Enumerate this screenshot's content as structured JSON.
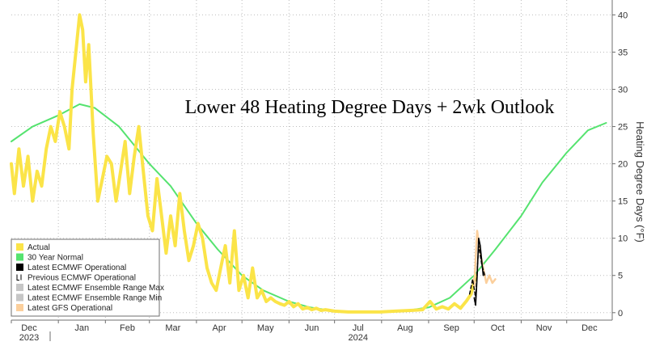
{
  "chart_data": {
    "type": "line",
    "title": "Lower 48 Heating Degree Days + 2wk Outlook",
    "ylabel": "Heating Degree Days (°F)",
    "xlabel": "",
    "ylim": [
      -1,
      42
    ],
    "yticks": [
      0,
      5,
      10,
      15,
      20,
      25,
      30,
      35,
      40
    ],
    "xlim": [
      "2023-12-01",
      "2024-12-31"
    ],
    "x_ticks": [
      {
        "date": "2023-12-01",
        "label": "Dec",
        "sublabel": "2023"
      },
      {
        "date": "2024-01-01",
        "label": "Jan"
      },
      {
        "date": "2024-02-01",
        "label": "Feb"
      },
      {
        "date": "2024-03-01",
        "label": "Mar"
      },
      {
        "date": "2024-04-01",
        "label": "Apr"
      },
      {
        "date": "2024-05-01",
        "label": "May"
      },
      {
        "date": "2024-06-01",
        "label": "Jun"
      },
      {
        "date": "2024-07-01",
        "label": "Jul",
        "sublabel": "2024"
      },
      {
        "date": "2024-08-01",
        "label": "Aug"
      },
      {
        "date": "2024-09-01",
        "label": "Sep"
      },
      {
        "date": "2024-10-01",
        "label": "Oct"
      },
      {
        "date": "2024-11-01",
        "label": "Nov"
      },
      {
        "date": "2024-12-01",
        "label": "Dec"
      }
    ],
    "grid": true,
    "legend_position": "bottom-left",
    "series": [
      {
        "name": "Actual",
        "color": "#fbe448",
        "style": "solid",
        "points": [
          [
            "2023-12-01",
            20
          ],
          [
            "2023-12-03",
            16
          ],
          [
            "2023-12-06",
            22
          ],
          [
            "2023-12-09",
            17
          ],
          [
            "2023-12-12",
            21
          ],
          [
            "2023-12-15",
            15
          ],
          [
            "2023-12-18",
            19
          ],
          [
            "2023-12-21",
            17
          ],
          [
            "2023-12-24",
            22
          ],
          [
            "2023-12-27",
            25
          ],
          [
            "2023-12-30",
            23
          ],
          [
            "2024-01-02",
            27
          ],
          [
            "2024-01-05",
            25
          ],
          [
            "2024-01-08",
            22
          ],
          [
            "2024-01-10",
            30
          ],
          [
            "2024-01-13",
            36
          ],
          [
            "2024-01-15",
            40
          ],
          [
            "2024-01-17",
            38
          ],
          [
            "2024-01-19",
            31
          ],
          [
            "2024-01-21",
            36
          ],
          [
            "2024-01-24",
            24
          ],
          [
            "2024-01-27",
            15
          ],
          [
            "2024-01-30",
            18
          ],
          [
            "2024-02-02",
            21
          ],
          [
            "2024-02-05",
            20
          ],
          [
            "2024-02-08",
            15
          ],
          [
            "2024-02-11",
            19
          ],
          [
            "2024-02-14",
            23
          ],
          [
            "2024-02-17",
            16
          ],
          [
            "2024-02-20",
            21
          ],
          [
            "2024-02-23",
            25
          ],
          [
            "2024-02-26",
            19
          ],
          [
            "2024-02-29",
            13
          ],
          [
            "2024-03-03",
            11
          ],
          [
            "2024-03-06",
            18
          ],
          [
            "2024-03-09",
            13
          ],
          [
            "2024-03-12",
            8
          ],
          [
            "2024-03-15",
            13
          ],
          [
            "2024-03-18",
            9
          ],
          [
            "2024-03-21",
            16
          ],
          [
            "2024-03-24",
            11
          ],
          [
            "2024-03-27",
            7
          ],
          [
            "2024-03-30",
            9
          ],
          [
            "2024-04-02",
            12
          ],
          [
            "2024-04-05",
            10
          ],
          [
            "2024-04-08",
            6
          ],
          [
            "2024-04-11",
            4
          ],
          [
            "2024-04-14",
            3
          ],
          [
            "2024-04-17",
            6
          ],
          [
            "2024-04-20",
            9
          ],
          [
            "2024-04-23",
            4
          ],
          [
            "2024-04-26",
            11
          ],
          [
            "2024-04-29",
            3
          ],
          [
            "2024-05-02",
            5
          ],
          [
            "2024-05-05",
            2
          ],
          [
            "2024-05-08",
            6
          ],
          [
            "2024-05-11",
            2
          ],
          [
            "2024-05-14",
            3
          ],
          [
            "2024-05-17",
            1.5
          ],
          [
            "2024-05-20",
            2
          ],
          [
            "2024-05-23",
            1.5
          ],
          [
            "2024-05-26",
            1.2
          ],
          [
            "2024-05-29",
            1
          ],
          [
            "2024-06-01",
            1.5
          ],
          [
            "2024-06-04",
            0.8
          ],
          [
            "2024-06-07",
            1.2
          ],
          [
            "2024-06-10",
            0.5
          ],
          [
            "2024-06-13",
            0.7
          ],
          [
            "2024-06-16",
            0.4
          ],
          [
            "2024-06-19",
            0.6
          ],
          [
            "2024-06-22",
            0.3
          ],
          [
            "2024-06-25",
            0.4
          ],
          [
            "2024-06-28",
            0.3
          ],
          [
            "2024-07-01",
            0.2
          ],
          [
            "2024-07-10",
            0.1
          ],
          [
            "2024-07-20",
            0.1
          ],
          [
            "2024-07-31",
            0.1
          ],
          [
            "2024-08-10",
            0.2
          ],
          [
            "2024-08-20",
            0.3
          ],
          [
            "2024-08-28",
            0.4
          ],
          [
            "2024-09-02",
            1.5
          ],
          [
            "2024-09-06",
            0.5
          ],
          [
            "2024-09-10",
            0.8
          ],
          [
            "2024-09-14",
            0.5
          ],
          [
            "2024-09-18",
            1.2
          ],
          [
            "2024-09-22",
            0.6
          ],
          [
            "2024-09-26",
            1.6
          ],
          [
            "2024-09-29",
            2.5
          ],
          [
            "2024-10-02",
            5
          ]
        ]
      },
      {
        "name": "30 Year Normal",
        "color": "#55e36f",
        "style": "solid",
        "points": [
          [
            "2023-12-01",
            23
          ],
          [
            "2023-12-15",
            25
          ],
          [
            "2024-01-01",
            26.5
          ],
          [
            "2024-01-15",
            28
          ],
          [
            "2024-01-25",
            27.5
          ],
          [
            "2024-02-10",
            25
          ],
          [
            "2024-03-01",
            20
          ],
          [
            "2024-03-15",
            17
          ],
          [
            "2024-04-01",
            12
          ],
          [
            "2024-04-15",
            8.5
          ],
          [
            "2024-05-01",
            5
          ],
          [
            "2024-05-15",
            3
          ],
          [
            "2024-06-01",
            1.5
          ],
          [
            "2024-06-15",
            0.7
          ],
          [
            "2024-07-01",
            0.2
          ],
          [
            "2024-07-15",
            0.1
          ],
          [
            "2024-08-01",
            0.1
          ],
          [
            "2024-08-15",
            0.2
          ],
          [
            "2024-09-01",
            0.7
          ],
          [
            "2024-09-15",
            2
          ],
          [
            "2024-10-01",
            5
          ],
          [
            "2024-10-15",
            8.5
          ],
          [
            "2024-11-01",
            13
          ],
          [
            "2024-11-15",
            17.5
          ],
          [
            "2024-12-01",
            21.5
          ],
          [
            "2024-12-15",
            24.5
          ],
          [
            "2024-12-27",
            25.5
          ]
        ]
      },
      {
        "name": "Latest ECMWF Operational",
        "color": "#000000",
        "style": "solid",
        "points": [
          [
            "2024-10-01",
            2
          ],
          [
            "2024-10-02",
            1
          ],
          [
            "2024-10-03",
            5
          ],
          [
            "2024-10-04",
            10
          ],
          [
            "2024-10-05",
            9
          ],
          [
            "2024-10-06",
            7
          ],
          [
            "2024-10-07",
            5
          ]
        ]
      },
      {
        "name": "Previous ECMWF Operational",
        "color": "#000000",
        "style": "dashed",
        "points": [
          [
            "2024-09-28",
            2.5
          ],
          [
            "2024-09-30",
            4.5
          ],
          [
            "2024-10-02",
            2
          ],
          [
            "2024-10-04",
            9
          ],
          [
            "2024-10-06",
            6.5
          ],
          [
            "2024-10-08",
            5
          ]
        ]
      },
      {
        "name": "Latest ECMWF Ensemble Range Max",
        "color": "#c6c6c6",
        "style": "solid",
        "points": []
      },
      {
        "name": "Latest ECMWF Ensemble Range Min",
        "color": "#c6c6c6",
        "style": "solid",
        "points": []
      },
      {
        "name": "Latest GFS Operational",
        "color": "#fbcf9c",
        "style": "solid",
        "points": [
          [
            "2024-10-01",
            3.5
          ],
          [
            "2024-10-03",
            11
          ],
          [
            "2024-10-05",
            8
          ],
          [
            "2024-10-07",
            6
          ],
          [
            "2024-10-09",
            4
          ],
          [
            "2024-10-11",
            5
          ],
          [
            "2024-10-13",
            4
          ],
          [
            "2024-10-15",
            4.5
          ]
        ]
      }
    ]
  }
}
